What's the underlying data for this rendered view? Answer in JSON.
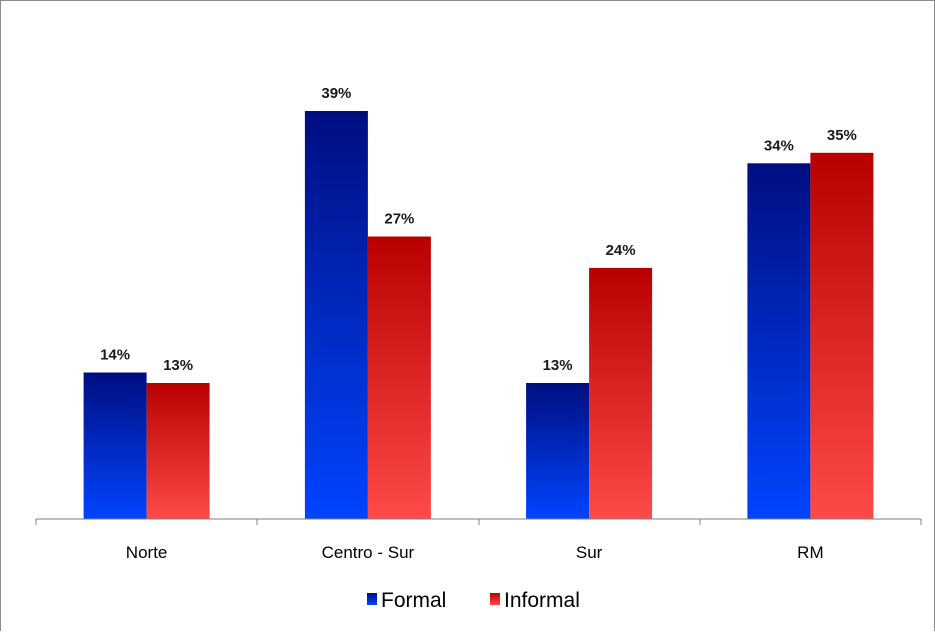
{
  "chart_data": {
    "type": "bar",
    "categories": [
      "Norte",
      "Centro - Sur",
      "Sur",
      "RM"
    ],
    "series": [
      {
        "name": "Formal",
        "values": [
          14,
          39,
          13,
          34
        ],
        "labels": [
          "14%",
          "39%",
          "13%",
          "34%"
        ]
      },
      {
        "name": "Informal",
        "values": [
          13,
          27,
          24,
          35
        ],
        "labels": [
          "13%",
          "27%",
          "24%",
          "35%"
        ]
      }
    ],
    "ylim": [
      0,
      40
    ],
    "value_unit": "%",
    "grid": false,
    "legend": "bottom",
    "colors": {
      "formal_top": "#000e80",
      "formal_bottom": "#0044ff",
      "informal_top": "#b80000",
      "informal_bottom": "#ff4a4a",
      "axis": "#7f7f7f"
    }
  }
}
